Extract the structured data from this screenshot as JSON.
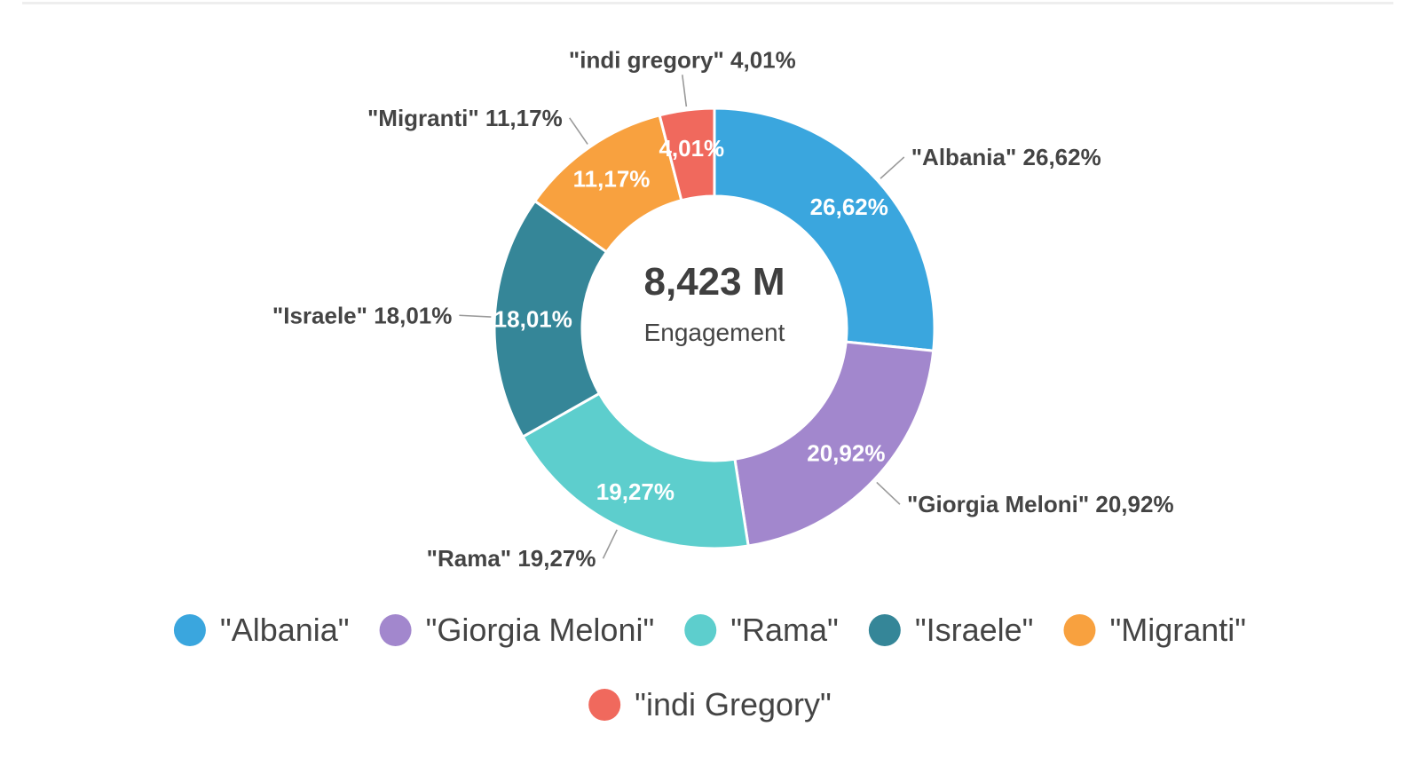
{
  "colors": {
    "albania": "#3aa6de",
    "giorgia_meloni": "#a287cd",
    "rama": "#5dcecd",
    "israele": "#358698",
    "migranti": "#f8a13f",
    "indi_gregory": "#f0695d"
  },
  "chart_data": {
    "type": "pie",
    "donut": true,
    "center": {
      "value": "8,423 M",
      "label": "Engagement"
    },
    "slices": [
      {
        "label": "\"Albania\"",
        "value": 26.62,
        "pct_label": "26,62%",
        "callout": "\"Albania\" 26,62%",
        "color": "#3aa6de"
      },
      {
        "label": "\"Giorgia Meloni\"",
        "value": 20.92,
        "pct_label": "20,92%",
        "callout": "\"Giorgia Meloni\" 20,92%",
        "color": "#a287cd"
      },
      {
        "label": "\"Rama\"",
        "value": 19.27,
        "pct_label": "19,27%",
        "callout": "\"Rama\" 19,27%",
        "color": "#5dcecd"
      },
      {
        "label": "\"Israele\"",
        "value": 18.01,
        "pct_label": "18,01%",
        "callout": "\"Israele\" 18,01%",
        "color": "#358698"
      },
      {
        "label": "\"Migranti\"",
        "value": 11.17,
        "pct_label": "11,17%",
        "callout": "\"Migranti\" 11,17%",
        "color": "#f8a13f"
      },
      {
        "label": "\"indi gregory\"",
        "value": 4.01,
        "pct_label": "4,01%",
        "callout": "\"indi gregory\" 4,01%",
        "color": "#f0695d"
      }
    ],
    "legend": {
      "placement": "bottom",
      "entries": [
        {
          "label": "\"Albania\"",
          "color": "#3aa6de"
        },
        {
          "label": "\"Giorgia Meloni\"",
          "color": "#a287cd"
        },
        {
          "label": "\"Rama\"",
          "color": "#5dcecd"
        },
        {
          "label": "\"Israele\"",
          "color": "#358698"
        },
        {
          "label": "\"Migranti\"",
          "color": "#f8a13f"
        },
        {
          "label": "\"indi Gregory\"",
          "color": "#f0695d"
        }
      ]
    }
  }
}
